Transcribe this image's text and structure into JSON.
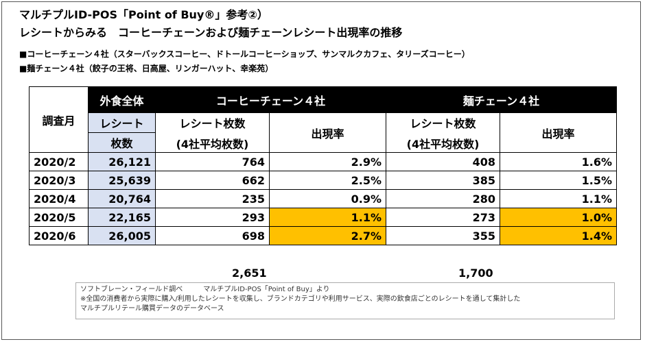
{
  "title_line1": "マルチプルID-POS「Point of Buy®」参考②）",
  "title_line2": "レシートからみる　コーヒーチェーンおよび麺チェーンレシート出現率の推移",
  "note_coffee": "■コーヒーチェーン４社（スターバックスコーヒー、ドトールコーヒーショップ、サンマルクカフェ、タリーズコーヒー）",
  "note_noodle": "■麺チェーン４社（餃子の王将、日高屋、リンガーハット、幸楽苑）",
  "table": {
    "col_month": "調査月",
    "col_total_line1": "外食全体",
    "col_total_line2": "レシート",
    "col_total_line3": "枚数",
    "group_coffee": "コーヒーチェーン４社",
    "group_noodle": "麺チェーン４社",
    "sub_count_line1": "レシート枚数",
    "sub_count_line2": "(4社平均枚数)",
    "sub_rate": "出現率",
    "rows": [
      {
        "month": "2020/2",
        "total": "26,121",
        "coffee_count": "764",
        "coffee_rate": "2.9%",
        "noodle_count": "408",
        "noodle_rate": "1.6%"
      },
      {
        "month": "2020/3",
        "total": "25,639",
        "coffee_count": "662",
        "coffee_rate": "2.5%",
        "noodle_count": "385",
        "noodle_rate": "1.5%"
      },
      {
        "month": "2020/4",
        "total": "20,764",
        "coffee_count": "235",
        "coffee_rate": "0.9%",
        "noodle_count": "280",
        "noodle_rate": "1.1%"
      },
      {
        "month": "2020/5",
        "total": "22,165",
        "coffee_count": "293",
        "coffee_rate": "1.1%",
        "noodle_count": "273",
        "noodle_rate": "1.0%"
      },
      {
        "month": "2020/6",
        "total": "26,005",
        "coffee_count": "698",
        "coffee_rate": "2.7%",
        "noodle_count": "355",
        "noodle_rate": "1.4%"
      }
    ],
    "total_coffee": "2,651",
    "total_noodle": "1,700"
  },
  "colors": {
    "highlight": "#ffc000",
    "total_column": "#d9e1f2",
    "header_black": "#000000"
  },
  "source": {
    "line1": "ソフトブレーン・フィールド調べ　　　マルチプルID-POS「Point of Buy」より",
    "line2": "※全国の消費者から実際に購入/利用したレシートを収集し、ブランドカテゴリや利用サービス、実際の飲食店ごとのレシートを通して集計した",
    "line3": "マルチプルリテール購買データのデータベース"
  }
}
